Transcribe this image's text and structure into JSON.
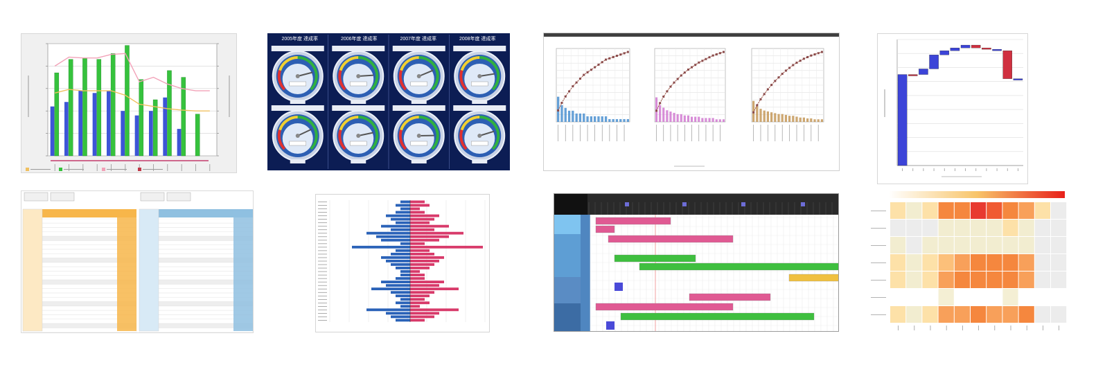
{
  "thumbnails": [
    {
      "name": "bar-line-combo-chart"
    },
    {
      "name": "gauge-grid"
    },
    {
      "name": "pareto-charts"
    },
    {
      "name": "waterfall-chart"
    },
    {
      "name": "cross-table"
    },
    {
      "name": "diverging-bar-chart"
    },
    {
      "name": "gantt-schedule"
    },
    {
      "name": "heatmap"
    }
  ],
  "gauges": {
    "headers": [
      "2005年度 達成率",
      "2006年度 達成率",
      "2007年度 達成率",
      "2008年度 達成率"
    ]
  },
  "chart_data": [
    {
      "type": "bar",
      "title": "",
      "ylim": [
        0,
        25
      ],
      "series": [
        {
          "values": [
            11,
            12,
            14.5,
            14,
            14.5,
            10,
            9,
            10,
            13,
            6
          ],
          "color": "#3d55d6"
        },
        {
          "values": [
            18.5,
            21.5,
            21.8,
            21.5,
            22.8,
            24.6,
            17,
            12.5,
            19,
            17.5,
            9.3
          ],
          "color": "#36c23d"
        }
      ],
      "lines": [
        {
          "values": [
            20,
            22,
            21.8,
            21.8,
            22.6,
            22.8,
            16.5,
            17.5,
            16,
            15,
            14.5,
            14.5
          ],
          "color": "#f2a2b8"
        },
        {
          "values": [
            14,
            14.8,
            14.5,
            14.5,
            14.5,
            13.5,
            11.5,
            11,
            10.5,
            10.2,
            10,
            10
          ],
          "color": "#f0c060"
        }
      ],
      "legend": [
        "",
        "",
        "",
        ""
      ]
    },
    {
      "type": "gauge",
      "values": [
        0.78,
        0.82,
        0.75,
        0.8,
        0.74,
        0.79,
        0.83,
        0.77
      ]
    },
    {
      "type": "pareto",
      "panels": [
        {
          "bars": [
            9,
            6,
            5,
            4,
            4,
            3,
            3,
            3,
            2,
            2,
            2,
            2,
            2,
            2,
            1,
            1,
            1,
            1,
            1,
            1
          ],
          "color": "#4a8fd0"
        },
        {
          "bars": [
            19,
            13,
            11,
            9,
            8,
            7,
            6,
            6,
            5,
            5,
            4,
            4,
            4,
            3,
            3,
            3,
            3,
            2,
            2,
            2
          ],
          "color": "#d078d0"
        },
        {
          "bars": [
            24,
            18,
            15,
            13,
            12,
            11,
            10,
            9,
            9,
            8,
            7,
            7,
            6,
            5,
            5,
            4,
            4,
            3,
            3,
            3
          ],
          "color": "#c49858"
        }
      ]
    },
    {
      "type": "waterfall",
      "ylim": [
        0,
        9
      ],
      "steps": [
        {
          "from": 0,
          "to": 6.5,
          "color": "#3c44d8"
        },
        {
          "from": 6.5,
          "to": 6.5,
          "color": "#c03848"
        },
        {
          "from": 6.5,
          "to": 6.9,
          "color": "#3c44d8"
        },
        {
          "from": 6.9,
          "to": 7.9,
          "color": "#3c44d8"
        },
        {
          "from": 7.9,
          "to": 8.2,
          "color": "#3c44d8"
        },
        {
          "from": 8.2,
          "to": 8.4,
          "color": "#3c44d8"
        },
        {
          "from": 8.4,
          "to": 8.6,
          "color": "#3c44d8"
        },
        {
          "from": 8.6,
          "to": 8.4,
          "color": "#d03040"
        },
        {
          "from": 8.4,
          "to": 8.3,
          "color": "#d03040"
        },
        {
          "from": 8.3,
          "to": 8.2,
          "color": "#3c44d8"
        },
        {
          "from": 8.2,
          "to": 6.2,
          "color": "#d03040"
        },
        {
          "from": 6.2,
          "to": 6.2,
          "color": "#3c44d8"
        }
      ]
    },
    {
      "type": "diverging-bar",
      "left": [
        2,
        3,
        2,
        3,
        5,
        4,
        3,
        6,
        4,
        9,
        7,
        6,
        2,
        12,
        3,
        4,
        6,
        5,
        4,
        3,
        2,
        2,
        3,
        6,
        5,
        8,
        4,
        3,
        2,
        3,
        2,
        9,
        5,
        4,
        3
      ],
      "right": [
        3,
        4,
        2,
        3,
        6,
        5,
        4,
        8,
        5,
        11,
        8,
        6,
        3,
        15,
        4,
        5,
        7,
        6,
        5,
        4,
        2,
        3,
        3,
        7,
        6,
        10,
        5,
        4,
        3,
        4,
        2,
        10,
        6,
        5,
        3
      ]
    },
    {
      "type": "gantt",
      "tasks": [
        {
          "start": 0,
          "end": 12,
          "color": "#e05a93"
        },
        {
          "start": 0,
          "end": 3,
          "color": "#e05a93"
        },
        {
          "start": 2,
          "end": 22,
          "color": "#e05a93"
        },
        {
          "start": 3,
          "end": 16,
          "color": "#3fbf3f"
        },
        {
          "start": 7,
          "end": 40,
          "color": "#3fbf3f"
        },
        {
          "start": 31,
          "end": 40,
          "color": "#f0c040"
        },
        {
          "start": 15,
          "end": 28,
          "color": "#e05a93"
        },
        {
          "start": 0,
          "end": 22,
          "color": "#e05a93"
        },
        {
          "start": 4,
          "end": 35,
          "color": "#3fbf3f"
        }
      ]
    },
    {
      "type": "heatmap",
      "values": [
        [
          3,
          2,
          3,
          6,
          6,
          8,
          7,
          6,
          5,
          3,
          1
        ],
        [
          1,
          1,
          1,
          2,
          2,
          2,
          2,
          3,
          2,
          1,
          1
        ],
        [
          2,
          1,
          2,
          2,
          2,
          2,
          2,
          2,
          2,
          1,
          1
        ],
        [
          3,
          2,
          3,
          4,
          5,
          6,
          6,
          6,
          5,
          1,
          1
        ],
        [
          3,
          2,
          3,
          5,
          6,
          6,
          6,
          6,
          5,
          1,
          1
        ],
        [
          0,
          0,
          0,
          1,
          0,
          0,
          0,
          1,
          0,
          0,
          0
        ],
        [
          3,
          2,
          3,
          5,
          5,
          6,
          5,
          5,
          6,
          1,
          1
        ]
      ]
    }
  ]
}
